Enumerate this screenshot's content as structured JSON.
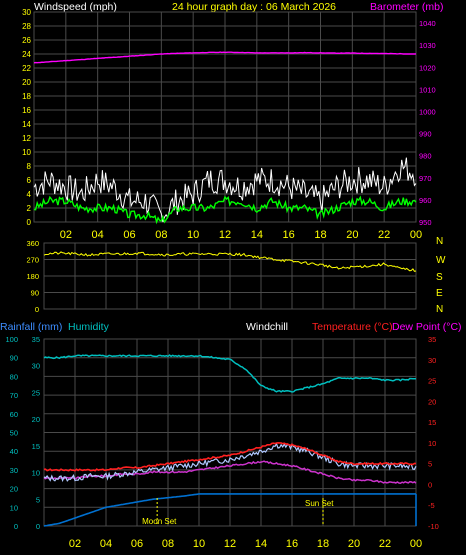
{
  "header": {
    "left_title": "Windspeed (mph)",
    "center_title": "24 hour graph day : 06 March 2026",
    "right_title": "Barometer (mb)"
  },
  "wind_panel": {
    "ticks": [
      "30",
      "28",
      "26",
      "24",
      "22",
      "20",
      "18",
      "16",
      "14",
      "12",
      "10",
      "8",
      "6",
      "4",
      "2",
      "0"
    ],
    "baro_ticks": [
      "1040",
      "1030",
      "1020",
      "1010",
      "1000",
      "990",
      "980",
      "970",
      "960",
      "950"
    ]
  },
  "direction_panel": {
    "ticks": [
      "360",
      "270",
      "180",
      "90",
      "0"
    ],
    "compass": [
      "N",
      "W",
      "S",
      "E",
      "N"
    ]
  },
  "bottom_header": {
    "rainfall": "Rainfall (mm)",
    "humidity": "Humidity",
    "windchill": "Windchill",
    "temperature": "Temperature (°C)",
    "dewpoint": "Dew Point (°C)"
  },
  "bottom_panel": {
    "hum_ticks": [
      "100",
      "90",
      "80",
      "70",
      "60",
      "50",
      "40",
      "30",
      "20",
      "10",
      "0"
    ],
    "rain_ticks": [
      "35",
      "30",
      "25",
      "20",
      "15",
      "10",
      "5",
      "0"
    ],
    "temp_ticks": [
      "35",
      "30",
      "25",
      "20",
      "15",
      "10",
      "5",
      "0",
      "-5",
      "-10"
    ],
    "moon_set": "Moon Set",
    "sun_set": "Sun Set"
  },
  "x_labels": [
    "02",
    "04",
    "06",
    "08",
    "10",
    "12",
    "14",
    "16",
    "18",
    "20",
    "22",
    "00"
  ],
  "colors": {
    "background": "#000000",
    "grid": "#4a4a4a",
    "wind_gust": "#ffffff",
    "wind_avg": "#00ff00",
    "barometer": "#ff00ff",
    "direction": "#ffff00",
    "rainfall": "#0070d0",
    "humidity": "#00bfbf",
    "windchill": "#b0c8ff",
    "temperature": "#ff2020",
    "dewpoint": "#cc33cc",
    "axis_yellow": "#ffff00",
    "axis_cyan": "#00c0c0",
    "axis_red": "#ff2020",
    "axis_magenta": "#ff00ff"
  },
  "chart_data": [
    {
      "type": "line",
      "title": "24 hour graph day : 06 March 2026",
      "x_hours": [
        0,
        1,
        2,
        3,
        4,
        5,
        6,
        7,
        8,
        9,
        10,
        11,
        12,
        13,
        14,
        15,
        16,
        17,
        18,
        19,
        20,
        21,
        22,
        23,
        24
      ],
      "ylim": [
        0,
        30
      ],
      "y2lim": [
        950,
        1045
      ],
      "series": [
        {
          "name": "Windspeed (mph)",
          "kind": "gust",
          "values": [
            5,
            6,
            5,
            4,
            6,
            5,
            3,
            3,
            1,
            3,
            4,
            6,
            6,
            5,
            6,
            6,
            5,
            4,
            3,
            5,
            6,
            6,
            5,
            8,
            7
          ]
        },
        {
          "name": "Windspeed (mph)",
          "kind": "average",
          "values": [
            2,
            3,
            3,
            2,
            2,
            2,
            1,
            1,
            0,
            2,
            2,
            2,
            3,
            3,
            2,
            3,
            2,
            2,
            1,
            2,
            3,
            3,
            2,
            3,
            3
          ]
        },
        {
          "name": "Barometer (mb)",
          "values": [
            1022,
            1022.5,
            1023,
            1023.5,
            1024,
            1024.5,
            1025,
            1025.5,
            1026,
            1026.3,
            1026.5,
            1026.7,
            1026.8,
            1026.7,
            1026.5,
            1026.5,
            1026.5,
            1026.6,
            1026.5,
            1026.4,
            1026.4,
            1026.3,
            1026.2,
            1026.1,
            1026
          ]
        }
      ]
    },
    {
      "type": "line",
      "x_hours": [
        0,
        1,
        2,
        3,
        4,
        5,
        6,
        7,
        8,
        9,
        10,
        11,
        12,
        13,
        14,
        15,
        16,
        17,
        18,
        19,
        20,
        21,
        22,
        23,
        24
      ],
      "ylim": [
        0,
        360
      ],
      "series": [
        {
          "name": "Wind direction",
          "values": [
            300,
            305,
            300,
            295,
            300,
            300,
            305,
            300,
            295,
            300,
            300,
            300,
            300,
            295,
            280,
            270,
            260,
            250,
            240,
            220,
            230,
            235,
            245,
            220,
            210
          ]
        }
      ]
    },
    {
      "type": "line",
      "x_hours": [
        0,
        1,
        2,
        3,
        4,
        5,
        6,
        7,
        8,
        9,
        10,
        11,
        12,
        13,
        14,
        15,
        16,
        17,
        18,
        19,
        20,
        21,
        22,
        23,
        24
      ],
      "ylim": [
        -10,
        35
      ],
      "y2lim": [
        0,
        100
      ],
      "series": [
        {
          "name": "Humidity",
          "values": [
            90,
            90,
            91,
            91,
            91,
            91,
            91,
            91,
            91,
            91,
            91,
            90,
            89,
            84,
            75,
            72,
            72,
            74,
            76,
            79,
            79,
            79,
            78,
            78,
            79
          ]
        },
        {
          "name": "Temperature (°C)",
          "values": [
            3.5,
            3.5,
            3.5,
            3.5,
            3.5,
            4,
            4,
            4.5,
            5,
            5.5,
            6,
            6.5,
            7,
            8,
            9,
            10,
            9.5,
            8.5,
            7,
            5.5,
            5,
            5,
            5,
            5,
            5
          ]
        },
        {
          "name": "Windchill",
          "values": [
            1.5,
            1.5,
            1.5,
            2,
            2,
            2.5,
            3,
            3.5,
            4,
            4.5,
            5,
            5.5,
            6,
            7,
            8,
            9.5,
            9,
            8,
            6.5,
            5,
            4.5,
            4.5,
            4.5,
            4.5,
            4
          ]
        },
        {
          "name": "Dew Point (°C)",
          "values": [
            1.5,
            1.5,
            1.5,
            2,
            2,
            2.5,
            2.5,
            3,
            3,
            3,
            3.5,
            4,
            4.5,
            5,
            5.5,
            5,
            4.5,
            3.5,
            2.5,
            1.5,
            1,
            1,
            0.5,
            0.5,
            0.5
          ]
        },
        {
          "name": "Rainfall (mm)",
          "values": [
            0,
            0.5,
            1.5,
            2.5,
            3.5,
            4,
            4.5,
            5,
            5.3,
            5.6,
            6,
            6,
            6,
            6,
            6,
            6,
            6,
            6,
            6,
            6,
            6,
            6,
            6,
            6,
            6
          ]
        }
      ]
    }
  ]
}
